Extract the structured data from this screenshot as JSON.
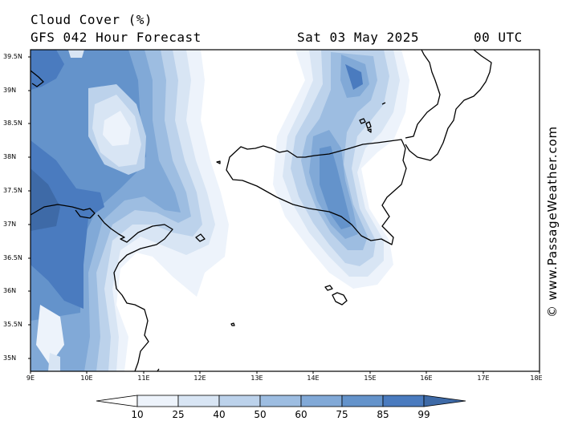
{
  "header": {
    "variable_title": "Cloud Cover (%)",
    "model_title": "GFS 042 Hour Forecast",
    "valid_date": "Sat 03 May 2025",
    "valid_time": "00 UTC"
  },
  "map": {
    "lat_labels": [
      "39.5N",
      "39N",
      "38.5N",
      "38N",
      "37.5N",
      "37N",
      "36.5N",
      "36N",
      "35.5N",
      "35N"
    ],
    "lon_labels": [
      "9E",
      "10E",
      "11E",
      "12E",
      "13E",
      "14E",
      "15E",
      "16E",
      "17E",
      "18E"
    ],
    "credit": "© www.PassageWeather.com"
  },
  "legend": {
    "levels": [
      "10",
      "25",
      "40",
      "50",
      "60",
      "75",
      "85",
      "99"
    ],
    "colors": [
      "#ffffff",
      "#edf3fb",
      "#d8e5f4",
      "#bcd2eb",
      "#9dbde1",
      "#81a9d7",
      "#6493cb",
      "#4a7bbf",
      "#3e6aa7"
    ]
  }
}
